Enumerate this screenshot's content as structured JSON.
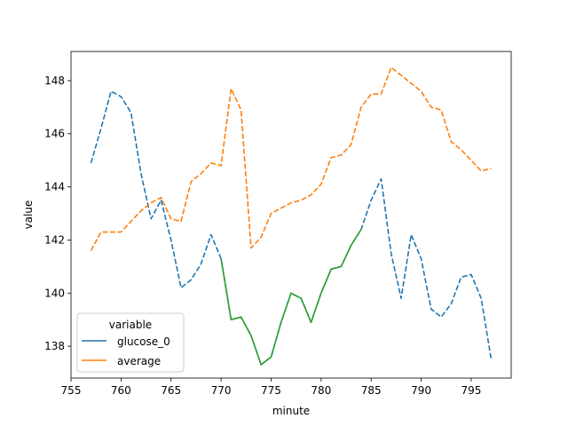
{
  "chart_data": {
    "type": "line",
    "title": "",
    "xlabel": "minute",
    "ylabel": "value",
    "xlim": [
      755,
      799
    ],
    "ylim": [
      136.8,
      149.1
    ],
    "xticks": [
      755,
      760,
      765,
      770,
      775,
      780,
      785,
      790,
      795
    ],
    "yticks": [
      138,
      140,
      142,
      144,
      146,
      148
    ],
    "grid": false,
    "legend": {
      "title": "variable",
      "placement": "lower-left",
      "entries": [
        {
          "name": "glucose_0",
          "color": "#1f77b4"
        },
        {
          "name": "average",
          "color": "#ff7f0e"
        }
      ]
    },
    "series": [
      {
        "name": "glucose_0",
        "color": "#1f77b4",
        "style": "dashed",
        "x": [
          757,
          758,
          759,
          760,
          761,
          762,
          763,
          764,
          765,
          766,
          767,
          768,
          769,
          770,
          771,
          772,
          773,
          774,
          775,
          776,
          777,
          778,
          779,
          780,
          781,
          782,
          783,
          784,
          785,
          786,
          787,
          788,
          789,
          790,
          791,
          792,
          793,
          794,
          795,
          796,
          797
        ],
        "y": [
          144.9,
          146.2,
          147.6,
          147.4,
          146.8,
          144.5,
          142.8,
          143.5,
          142.0,
          140.2,
          140.5,
          141.1,
          142.2,
          141.3,
          139.0,
          139.1,
          138.4,
          137.3,
          137.6,
          138.9,
          140.0,
          139.8,
          138.9,
          140.0,
          140.9,
          141.0,
          141.8,
          142.4,
          143.5,
          144.3,
          141.5,
          139.8,
          142.2,
          141.3,
          139.4,
          139.1,
          139.6,
          140.6,
          140.7,
          139.8,
          137.5
        ]
      },
      {
        "name": "average",
        "color": "#ff7f0e",
        "style": "dashed",
        "x": [
          757,
          758,
          759,
          760,
          761,
          762,
          763,
          764,
          765,
          766,
          767,
          768,
          769,
          770,
          771,
          772,
          773,
          774,
          775,
          776,
          777,
          778,
          779,
          780,
          781,
          782,
          783,
          784,
          785,
          786,
          787,
          788,
          789,
          790,
          791,
          792,
          793,
          794,
          795,
          796,
          797
        ],
        "y": [
          141.6,
          142.3,
          142.3,
          142.3,
          142.7,
          143.1,
          143.4,
          143.6,
          142.8,
          142.7,
          144.2,
          144.5,
          144.9,
          144.8,
          147.7,
          146.9,
          141.7,
          142.1,
          143.0,
          143.2,
          143.4,
          143.5,
          143.7,
          144.1,
          145.1,
          145.2,
          145.6,
          147.0,
          147.5,
          147.5,
          148.5,
          148.2,
          147.9,
          147.6,
          147.0,
          146.9,
          145.7,
          145.4,
          145.0,
          144.6,
          144.7
        ]
      },
      {
        "name": "",
        "color": "#2ca02c",
        "style": "solid",
        "x": [
          770,
          771,
          772,
          773,
          774,
          775,
          776,
          777,
          778,
          779,
          780,
          781,
          782,
          783,
          784
        ],
        "y": [
          141.3,
          139.0,
          139.1,
          138.4,
          137.3,
          137.6,
          138.9,
          140.0,
          139.8,
          138.9,
          140.0,
          140.9,
          141.0,
          141.8,
          142.4
        ]
      }
    ]
  }
}
